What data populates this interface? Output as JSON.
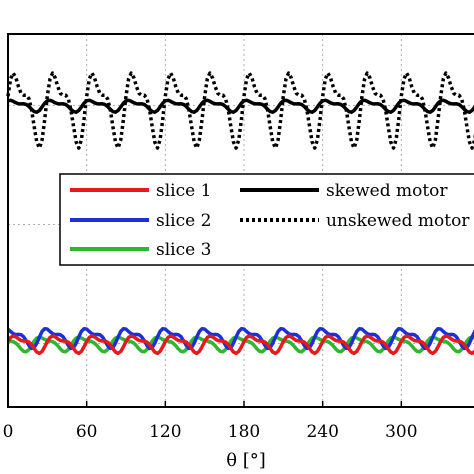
{
  "chart_data": {
    "type": "line",
    "xlabel": "θ [°]",
    "x_ticks": [
      "0",
      "60",
      "120",
      "180",
      "240",
      "300"
    ],
    "xlim": [
      0,
      360
    ],
    "grid": true,
    "legend_position": "center",
    "series": [
      {
        "name": "slice 1",
        "color": "#e41a1c",
        "style": "solid",
        "mean": 0.0,
        "amp1": 0.09,
        "amp2": 0.04,
        "phase": 0.0
      },
      {
        "name": "slice 2",
        "color": "#1f2fd6",
        "style": "solid",
        "mean": 0.08,
        "amp1": 0.1,
        "amp2": 0.05,
        "phase": 1.1
      },
      {
        "name": "slice 3",
        "color": "#2fb52f",
        "style": "solid",
        "mean": 0.0,
        "amp1": 0.08,
        "amp2": 0.03,
        "phase": 2.2
      },
      {
        "name": "skewed motor",
        "color": "#000000",
        "style": "solid",
        "mean": 3.0,
        "amp1": 0.06,
        "amp2": 0.03,
        "phase": 0.5
      },
      {
        "name": "unskewed motor",
        "color": "#000000",
        "style": "dotted",
        "mean": 3.0,
        "amp1": 0.38,
        "amp2": 0.18,
        "phase": 0.0
      }
    ],
    "ylim": [
      -0.8,
      3.9
    ],
    "x_samples": 181
  }
}
